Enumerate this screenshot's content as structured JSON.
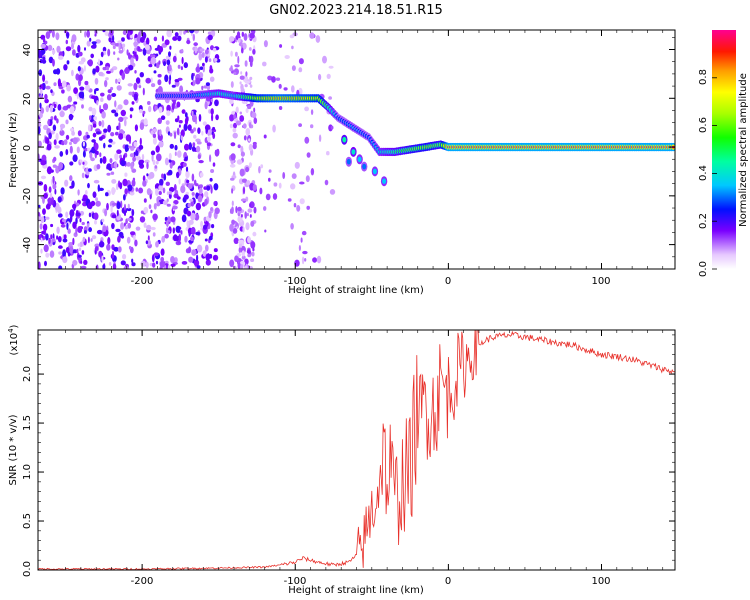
{
  "title": "GN02.2023.214.18.51.R15",
  "chart_data": [
    {
      "type": "heatmap",
      "xlabel": "Height of straight line (km)",
      "ylabel": "Frequency (Hz)",
      "xlim": [
        -268,
        148
      ],
      "ylim": [
        -50,
        48
      ],
      "xticks": [
        -200,
        -100,
        0,
        100
      ],
      "xtick_labels": [
        "-200",
        "-100",
        "0",
        "100"
      ],
      "yticks": [
        -40,
        -20,
        0,
        20,
        40
      ],
      "ytick_labels": [
        "-40",
        "-20",
        "0",
        "20",
        "40"
      ],
      "colorbar": {
        "label": "Normalized spectral amplitude",
        "range": [
          0,
          1
        ],
        "ticks": [
          0.0,
          0.2,
          0.4,
          0.6,
          0.8
        ],
        "tick_labels": [
          "0.0",
          "0.2",
          "0.4",
          "0.6",
          "0.8"
        ]
      },
      "ridge": [
        {
          "x": -190,
          "y": 21,
          "amp": 0.3
        },
        {
          "x": -170,
          "y": 21,
          "amp": 0.3
        },
        {
          "x": -150,
          "y": 22,
          "amp": 0.45
        },
        {
          "x": -140,
          "y": 21,
          "amp": 0.4
        },
        {
          "x": -125,
          "y": 20,
          "amp": 0.75
        },
        {
          "x": -110,
          "y": 20,
          "amp": 0.85
        },
        {
          "x": -95,
          "y": 20,
          "amp": 0.8
        },
        {
          "x": -85,
          "y": 20,
          "amp": 0.75
        },
        {
          "x": -78,
          "y": 16,
          "amp": 0.5
        },
        {
          "x": -72,
          "y": 12,
          "amp": 0.3
        },
        {
          "x": -62,
          "y": 8,
          "amp": 0.35
        },
        {
          "x": -52,
          "y": 4,
          "amp": 0.3
        },
        {
          "x": -45,
          "y": -2,
          "amp": 0.4
        },
        {
          "x": -35,
          "y": -2,
          "amp": 0.5
        },
        {
          "x": -25,
          "y": -1,
          "amp": 0.6
        },
        {
          "x": -15,
          "y": 0,
          "amp": 0.65
        },
        {
          "x": -5,
          "y": 1,
          "amp": 0.6
        },
        {
          "x": 0,
          "y": 0,
          "amp": 0.95
        },
        {
          "x": 50,
          "y": 0,
          "amp": 0.95
        },
        {
          "x": 100,
          "y": 0,
          "amp": 0.95
        },
        {
          "x": 148,
          "y": 0,
          "amp": 0.95
        }
      ]
    },
    {
      "type": "line",
      "xlabel": "Height of straight line (km)",
      "ylabel": "SNR (10 * v/v)",
      "scale_label": "(x10",
      "scale_exp": "4",
      "xlim": [
        -268,
        148
      ],
      "ylim": [
        0,
        2.45
      ],
      "xticks": [
        -200,
        -100,
        0,
        100
      ],
      "xtick_labels": [
        "-200",
        "-100",
        "0",
        "100"
      ],
      "yticks": [
        0.0,
        0.5,
        1.0,
        1.5,
        2.0
      ],
      "ytick_labels": [
        "0.0",
        "0.5",
        "1.0",
        "1.5",
        "2.0"
      ],
      "color": "#e8302a",
      "series": [
        {
          "x": [
            -268,
            -200,
            -150,
            -120,
            -110,
            -100,
            -95,
            -90,
            -85,
            -75,
            -65,
            -60,
            -55,
            -50,
            -45,
            -42,
            -40,
            -38,
            -35,
            -30,
            -25,
            -20,
            -18,
            -15,
            -10,
            -5,
            0,
            5,
            10,
            15,
            20,
            25,
            30,
            40,
            50,
            60,
            70,
            80,
            90,
            100,
            110,
            120,
            130,
            140,
            148
          ],
          "y": [
            0.01,
            0.01,
            0.02,
            0.03,
            0.05,
            0.08,
            0.12,
            0.1,
            0.08,
            0.05,
            0.08,
            0.15,
            0.3,
            0.6,
            0.9,
            1.3,
            0.8,
            1.1,
            0.7,
            0.9,
            1.0,
            1.7,
            1.4,
            1.8,
            1.6,
            1.9,
            1.8,
            2.0,
            2.1,
            2.2,
            2.3,
            2.35,
            2.38,
            2.4,
            2.38,
            2.35,
            2.32,
            2.3,
            2.25,
            2.2,
            2.18,
            2.15,
            2.1,
            2.05,
            2.02
          ]
        }
      ]
    }
  ]
}
